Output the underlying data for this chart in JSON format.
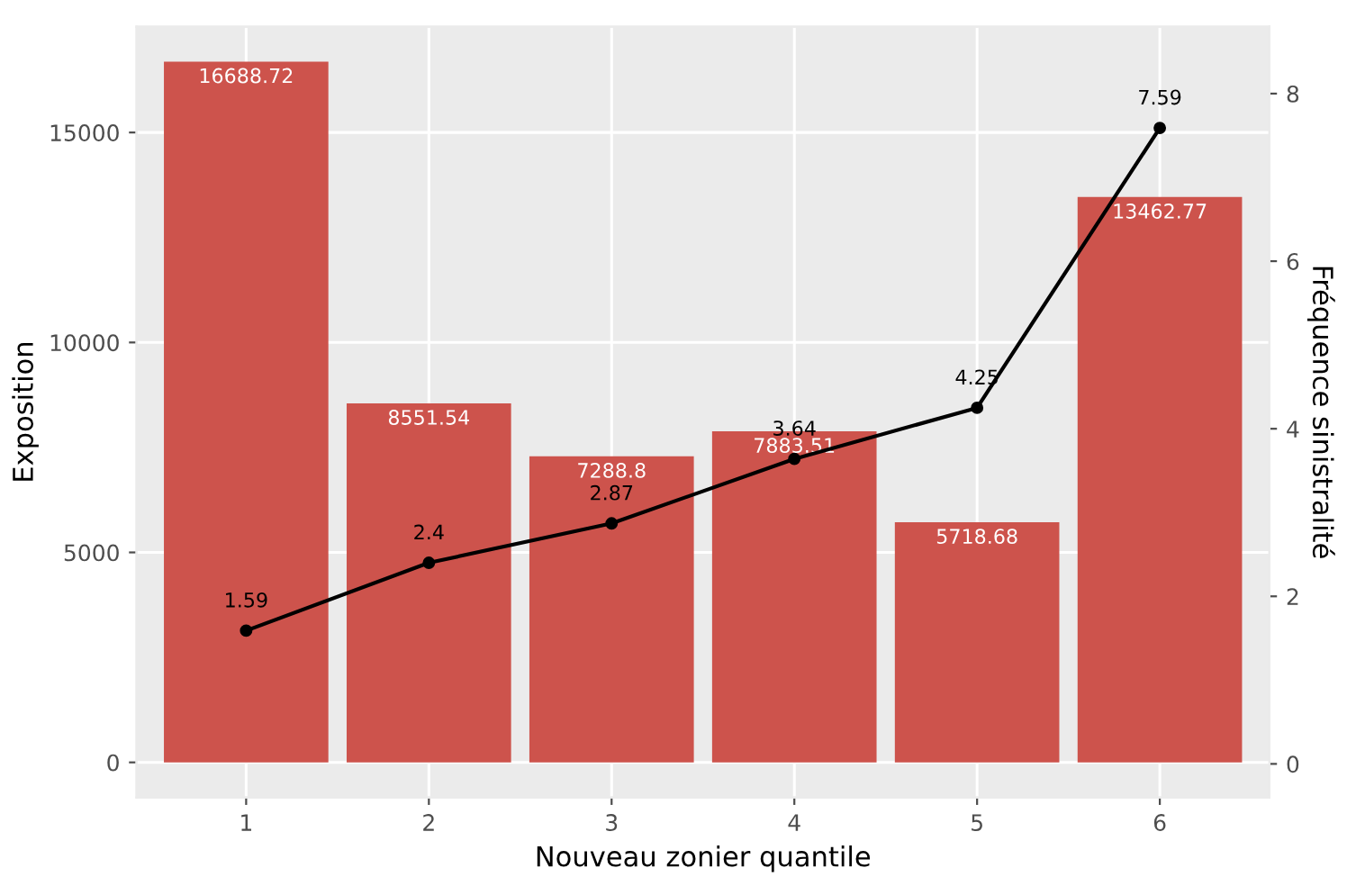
{
  "chart_data": {
    "type": "bar",
    "xlabel": "Nouveau zonier quantile",
    "ylabel": "Exposition",
    "y2label": "Fréquence sinistralité",
    "categories": [
      "1",
      "2",
      "3",
      "4",
      "5",
      "6"
    ],
    "series": [
      {
        "color": "#cd534c",
        "values": [
          16688.72,
          8551.54,
          7288.8,
          7883.51,
          5718.68,
          13462.77
        ]
      },
      {
        "type": "line",
        "axis": "y2",
        "color": "#000000",
        "marker": "circle",
        "values": [
          1.59,
          2.4,
          2.87,
          3.64,
          4.25,
          7.59
        ]
      }
    ],
    "data_labels": true,
    "ylim": [
      -834,
      17522
    ],
    "yticks": [
      0,
      5000,
      10000,
      15000
    ],
    "y2lim": [
      -0.4,
      8.8
    ],
    "y2ticks": [
      0,
      2,
      4,
      6,
      8
    ],
    "grid": true
  }
}
